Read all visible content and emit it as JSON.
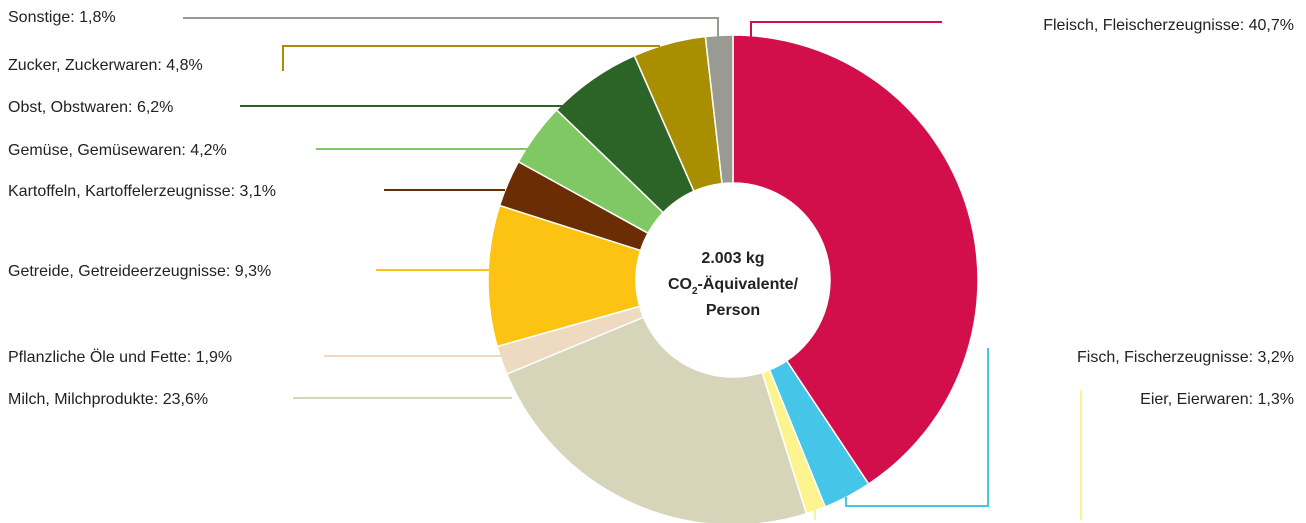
{
  "chart_data": {
    "type": "pie",
    "variant": "donut",
    "center_label": {
      "line1": "2.003 kg",
      "line2_prefix": "CO",
      "line2_sub": "2",
      "line2_suffix": "-Äquivalente/",
      "line3": "Person"
    },
    "slices": [
      {
        "label": "Fleisch, Fleischerzeugnisse: 40,7%",
        "value": 40.7,
        "color": "#d20f4a"
      },
      {
        "label": "Fisch, Fischerzeugnisse: 3,2%",
        "value": 3.2,
        "color": "#45c5e8"
      },
      {
        "label": "Eier, Eierwaren: 1,3%",
        "value": 1.3,
        "color": "#fdf38f"
      },
      {
        "label": "Milch, Milchprodukte: 23,6%",
        "value": 23.6,
        "color": "#d6d4b9"
      },
      {
        "label": "Pflanzliche Öle und Fette: 1,9%",
        "value": 1.9,
        "color": "#eddac0"
      },
      {
        "label": "Getreide, Getreideerzeugnisse: 9,3%",
        "value": 9.3,
        "color": "#fdc313"
      },
      {
        "label": "Kartoffeln, Kartoffelerzeugnisse: 3,1%",
        "value": 3.1,
        "color": "#6a2d04"
      },
      {
        "label": "Gemüse, Gemüsewaren: 4,2%",
        "value": 4.2,
        "color": "#80c864"
      },
      {
        "label": "Obst, Obstwaren: 6,2%",
        "value": 6.2,
        "color": "#2c6427"
      },
      {
        "label": "Zucker, Zuckerwaren: 4,8%",
        "value": 4.8,
        "color": "#a88e00"
      },
      {
        "label": "Sonstige: 1,8%",
        "value": 1.8,
        "color": "#999a92"
      }
    ]
  }
}
